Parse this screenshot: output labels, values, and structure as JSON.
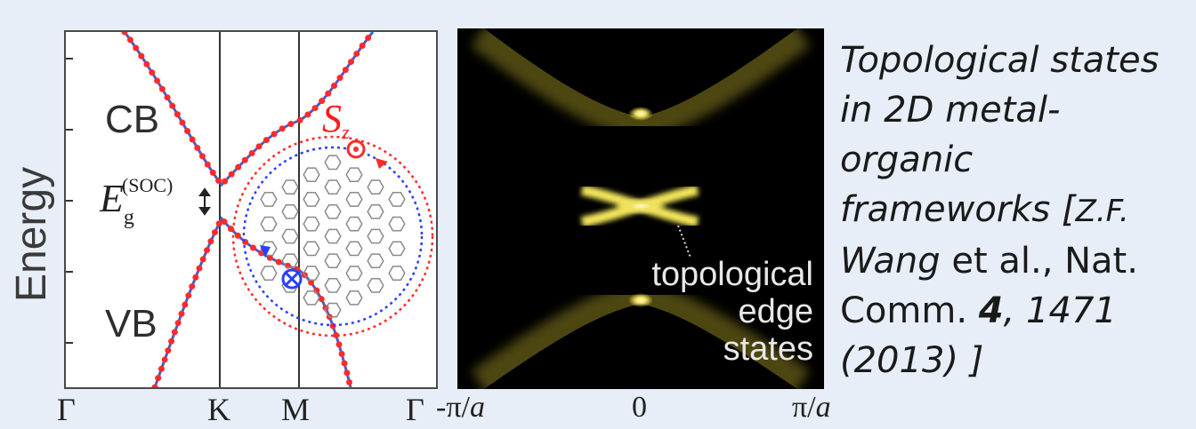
{
  "band_panel": {
    "y_axis_label": "Energy",
    "cb_label": "CB",
    "vb_label": "VB",
    "gap_label_E": "E",
    "gap_label_sub": "g",
    "gap_label_sup": "(SOC)",
    "spin_label": "S",
    "spin_sub": "z",
    "k_points": [
      "Γ",
      "K",
      "M",
      "Γ"
    ],
    "colors": {
      "band_line": "#3f5fd0",
      "band_dots": "#ff2a2a",
      "edge_circle_outer": "#ff2a2a",
      "edge_circle_inner": "#2a3fff",
      "lattice": "#8a8a8a"
    }
  },
  "spectral_panel": {
    "annotation": [
      "topological",
      "edge",
      "states"
    ],
    "x_ticks": [
      "-π/",
      "0",
      "π/"
    ],
    "x_tick_unit": "a",
    "colors": {
      "background": "#000000",
      "spectral": "#e8e05a"
    }
  },
  "caption": {
    "line1": "Topological states",
    "line2": "in 2D metal-",
    "line3": "organic",
    "line4a": "frameworks [",
    "line4b": "Z.F.",
    "line5a": "Wang",
    "line5b": " et al., Nat.",
    "line6a": "Comm. ",
    "line6b": "4",
    "line6c": ", 1471",
    "line7": "(2013) ]"
  }
}
